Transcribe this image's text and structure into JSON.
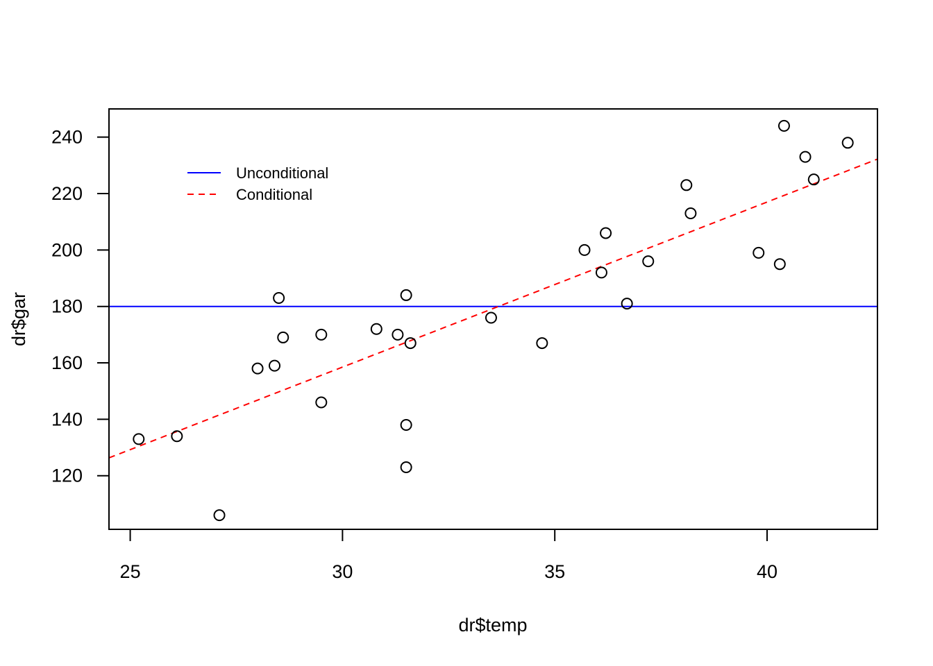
{
  "chart_data": {
    "type": "scatter",
    "title": "",
    "xlabel": "dr$temp",
    "ylabel": "dr$gar",
    "xlim": [
      24.5,
      42.6
    ],
    "ylim": [
      101,
      250
    ],
    "x_ticks": [
      25,
      30,
      35,
      40
    ],
    "y_ticks": [
      120,
      140,
      160,
      180,
      200,
      220,
      240
    ],
    "grid": false,
    "points": [
      {
        "x": 25.2,
        "y": 133
      },
      {
        "x": 26.1,
        "y": 134
      },
      {
        "x": 27.1,
        "y": 106
      },
      {
        "x": 28.0,
        "y": 158
      },
      {
        "x": 28.4,
        "y": 159
      },
      {
        "x": 28.5,
        "y": 183
      },
      {
        "x": 28.6,
        "y": 169
      },
      {
        "x": 29.5,
        "y": 170
      },
      {
        "x": 29.5,
        "y": 146
      },
      {
        "x": 30.8,
        "y": 172
      },
      {
        "x": 31.3,
        "y": 170
      },
      {
        "x": 31.5,
        "y": 184
      },
      {
        "x": 31.6,
        "y": 167
      },
      {
        "x": 31.5,
        "y": 138
      },
      {
        "x": 31.5,
        "y": 123
      },
      {
        "x": 33.5,
        "y": 176
      },
      {
        "x": 34.7,
        "y": 167
      },
      {
        "x": 35.7,
        "y": 200
      },
      {
        "x": 36.1,
        "y": 192
      },
      {
        "x": 36.2,
        "y": 206
      },
      {
        "x": 36.7,
        "y": 181
      },
      {
        "x": 37.2,
        "y": 196
      },
      {
        "x": 38.1,
        "y": 223
      },
      {
        "x": 38.2,
        "y": 213
      },
      {
        "x": 39.8,
        "y": 199
      },
      {
        "x": 40.3,
        "y": 195
      },
      {
        "x": 40.4,
        "y": 244
      },
      {
        "x": 40.9,
        "y": 233
      },
      {
        "x": 41.1,
        "y": 225
      },
      {
        "x": 41.9,
        "y": 238
      }
    ],
    "lines": [
      {
        "name": "Unconditional",
        "type": "horizontal",
        "y": 180,
        "color": "#0000ff",
        "dash": "solid"
      },
      {
        "name": "Conditional",
        "type": "abline",
        "intercept": -17.0,
        "slope": 5.85,
        "color": "#ff0000",
        "dash": "dashed"
      }
    ],
    "legend": {
      "position": "top-left",
      "entries": [
        {
          "label": "Unconditional",
          "color": "#0000ff",
          "dash": "solid"
        },
        {
          "label": "Conditional",
          "color": "#ff0000",
          "dash": "dashed"
        }
      ]
    }
  }
}
